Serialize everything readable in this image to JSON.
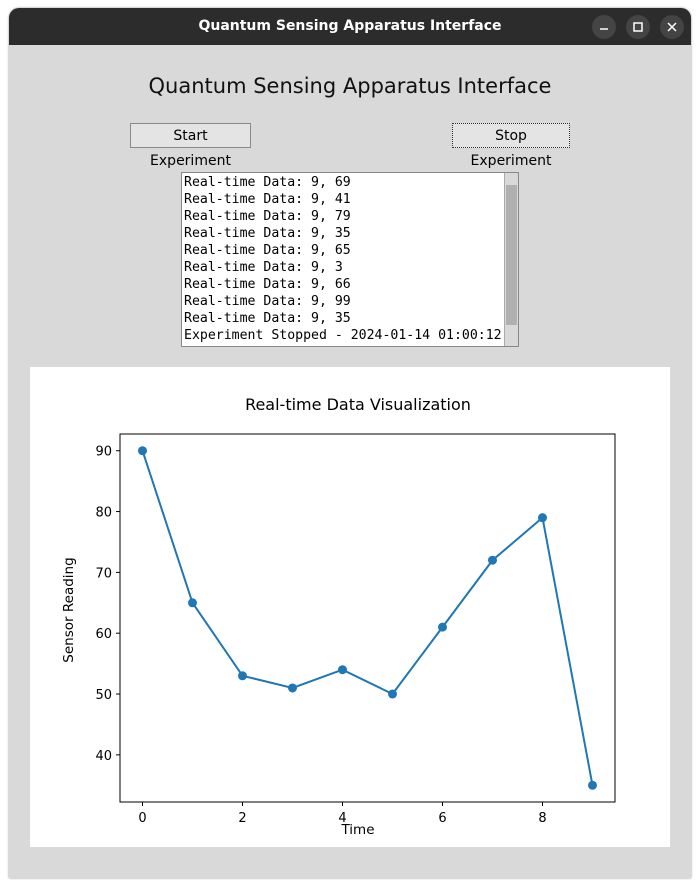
{
  "window": {
    "title": "Quantum Sensing Apparatus Interface"
  },
  "header": {
    "title": "Quantum Sensing Apparatus Interface"
  },
  "buttons": [
    "Start Experiment",
    "Stop Experiment"
  ],
  "log": [
    "Real-time Data: 9, 69",
    "Real-time Data: 9, 41",
    "Real-time Data: 9, 79",
    "Real-time Data: 9, 35",
    "Real-time Data: 9, 65",
    "Real-time Data: 9, 3",
    "Real-time Data: 9, 66",
    "Real-time Data: 9, 99",
    "Real-time Data: 9, 35",
    "Experiment Stopped - 2024-01-14 01:00:12"
  ],
  "chart_data": {
    "type": "line",
    "title": "Real-time Data Visualization",
    "x_label": "Time",
    "y_label": "Sensor Reading",
    "x": [
      0,
      1,
      2,
      3,
      4,
      5,
      6,
      7,
      8,
      9
    ],
    "series": [
      {
        "color": "#1f77b4",
        "values": [
          90,
          65,
          53,
          51,
          54,
          50,
          61,
          72,
          79,
          35
        ]
      }
    ],
    "xlim": [
      -0.45,
      9.45
    ],
    "ylim": [
      32.25,
      92.75
    ],
    "xticks": [
      0,
      2,
      4,
      6,
      8
    ],
    "yticks": [
      40,
      50,
      60,
      70,
      80,
      90
    ]
  }
}
